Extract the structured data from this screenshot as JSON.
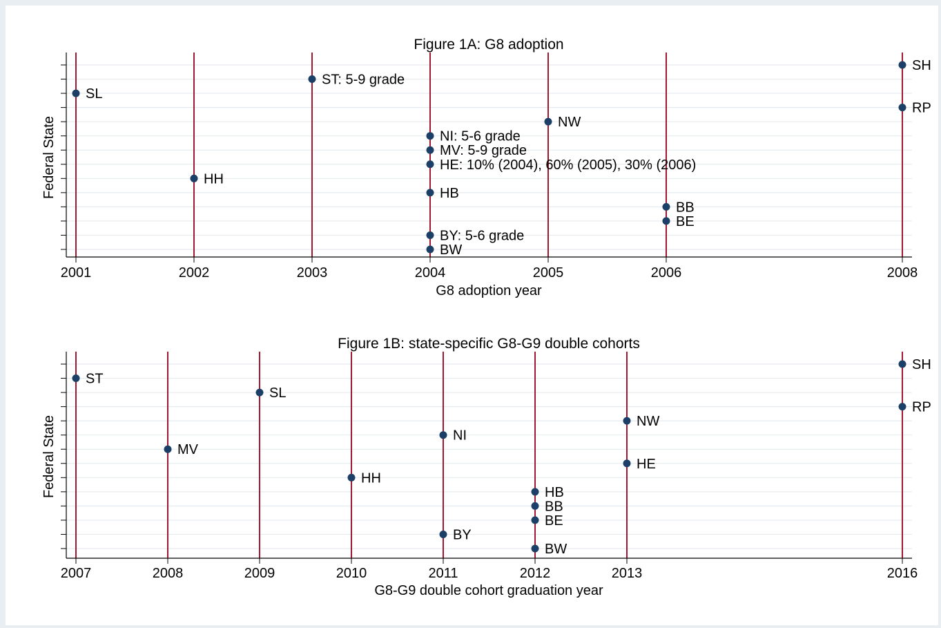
{
  "colors": {
    "outer_background": "#e9eef2",
    "plot_background": "#ffffff",
    "vline": "#a3162f",
    "grid": "#e6ebef",
    "marker": "#1b3f66",
    "axis": "#000000"
  },
  "chart_data": [
    {
      "type": "scatter",
      "title": "Figure 1A: G8 adoption",
      "xlabel": "G8 adoption year",
      "ylabel": "Federal State",
      "x_ticks": [
        2001,
        2002,
        2003,
        2004,
        2005,
        2006,
        2008
      ],
      "xlim": [
        2001,
        2008
      ],
      "ylim": [
        1,
        14
      ],
      "vertical_lines": [
        2001,
        2002,
        2003,
        2004,
        2005,
        2006,
        2008
      ],
      "grid": true,
      "points": [
        {
          "x": 2008,
          "y": 14,
          "label": "SH"
        },
        {
          "x": 2003,
          "y": 13,
          "label": "ST: 5-9 grade"
        },
        {
          "x": 2001,
          "y": 12,
          "label": "SL"
        },
        {
          "x": 2008,
          "y": 11,
          "label": "RP"
        },
        {
          "x": 2005,
          "y": 10,
          "label": "NW"
        },
        {
          "x": 2004,
          "y": 9,
          "label": "NI: 5-6 grade"
        },
        {
          "x": 2004,
          "y": 8,
          "label": "MV: 5-9 grade"
        },
        {
          "x": 2004,
          "y": 7,
          "label": "HE: 10% (2004), 60% (2005), 30% (2006)"
        },
        {
          "x": 2002,
          "y": 6,
          "label": "HH"
        },
        {
          "x": 2004,
          "y": 5,
          "label": "HB"
        },
        {
          "x": 2006,
          "y": 4,
          "label": "BB"
        },
        {
          "x": 2006,
          "y": 3,
          "label": "BE"
        },
        {
          "x": 2004,
          "y": 2,
          "label": "BY: 5-6 grade"
        },
        {
          "x": 2004,
          "y": 1,
          "label": "BW"
        }
      ]
    },
    {
      "type": "scatter",
      "title": "Figure 1B: state-specific G8-G9 double cohorts",
      "xlabel": "G8-G9 double cohort graduation year",
      "ylabel": "Federal State",
      "x_ticks": [
        2007,
        2008,
        2009,
        2010,
        2011,
        2012,
        2013,
        2016
      ],
      "xlim": [
        2007,
        2016
      ],
      "ylim": [
        1,
        14
      ],
      "vertical_lines": [
        2007,
        2008,
        2009,
        2010,
        2011,
        2012,
        2013,
        2016
      ],
      "grid": true,
      "points": [
        {
          "x": 2016,
          "y": 14,
          "label": "SH"
        },
        {
          "x": 2007,
          "y": 13,
          "label": "ST"
        },
        {
          "x": 2009,
          "y": 12,
          "label": "SL"
        },
        {
          "x": 2016,
          "y": 11,
          "label": "RP"
        },
        {
          "x": 2013,
          "y": 10,
          "label": "NW"
        },
        {
          "x": 2011,
          "y": 9,
          "label": "NI"
        },
        {
          "x": 2008,
          "y": 8,
          "label": "MV"
        },
        {
          "x": 2013,
          "y": 7,
          "label": "HE"
        },
        {
          "x": 2010,
          "y": 6,
          "label": "HH"
        },
        {
          "x": 2012,
          "y": 5,
          "label": "HB"
        },
        {
          "x": 2012,
          "y": 4,
          "label": "BB"
        },
        {
          "x": 2012,
          "y": 3,
          "label": "BE"
        },
        {
          "x": 2011,
          "y": 2,
          "label": "BY"
        },
        {
          "x": 2012,
          "y": 1,
          "label": "BW"
        }
      ]
    }
  ]
}
